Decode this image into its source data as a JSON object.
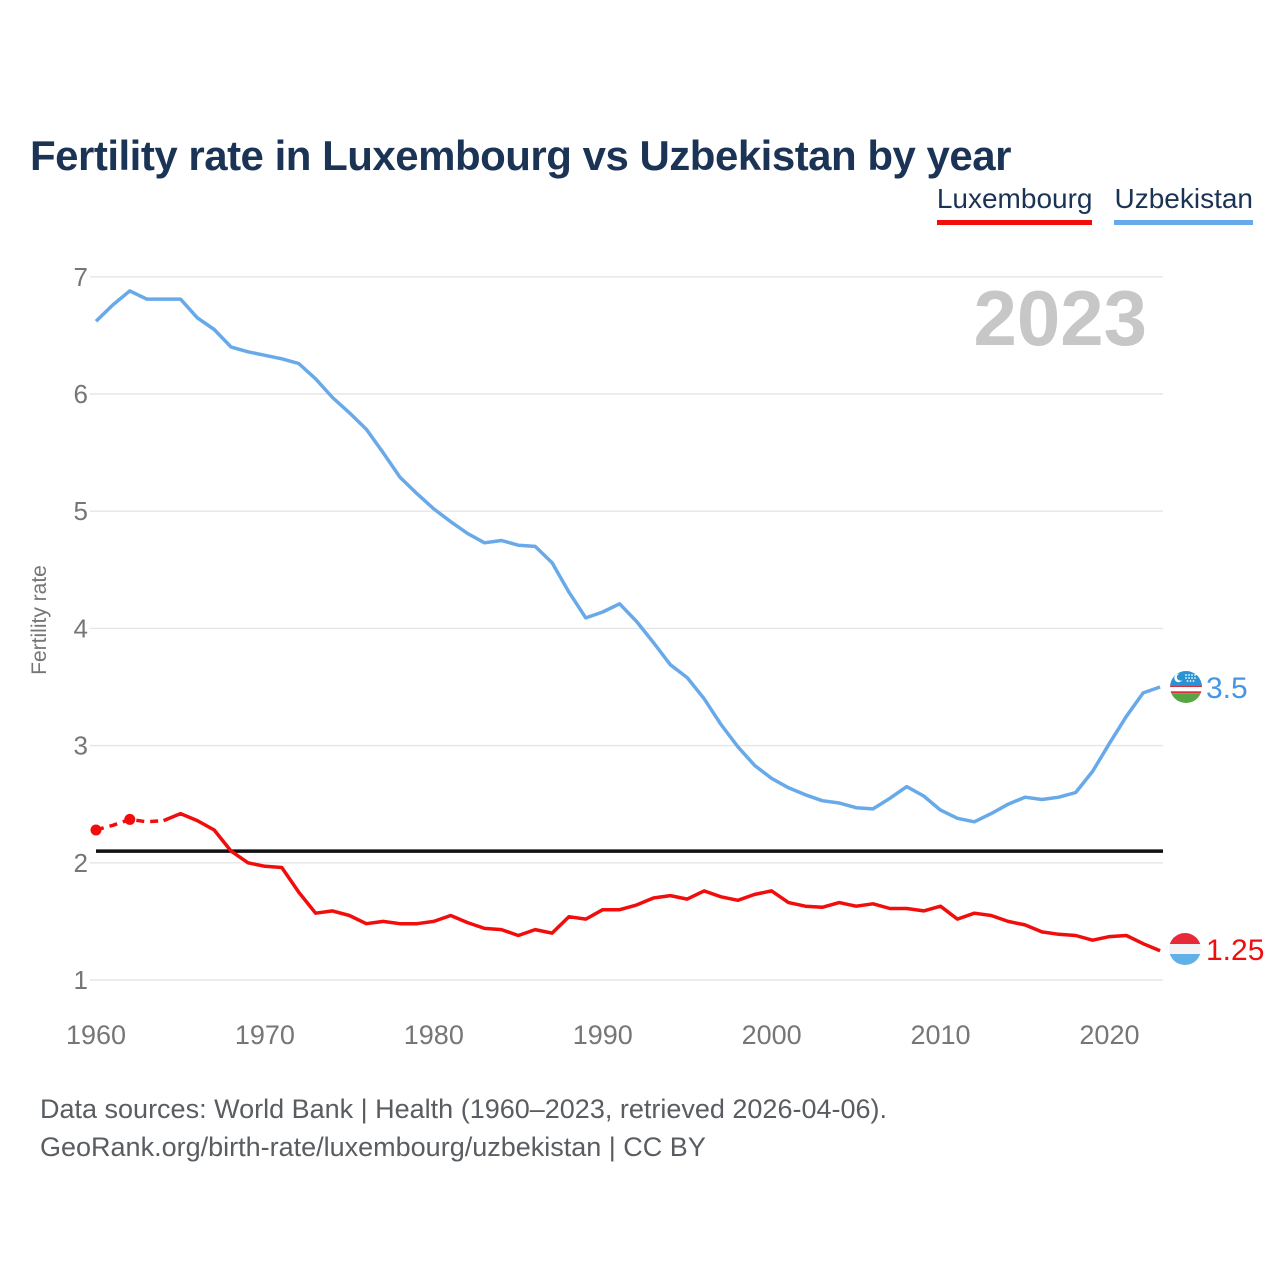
{
  "header": {
    "title": "Fertility rate in Luxembourg vs Uzbekistan by year"
  },
  "legend": [
    {
      "id": "luxembourg",
      "label": "Luxembourg",
      "color": "#f20d0d"
    },
    {
      "id": "uzbekistan",
      "label": "Uzbekistan",
      "color": "#68a9e9"
    }
  ],
  "watermark": "2023",
  "chart_data": {
    "type": "line",
    "title": "Fertility rate in Luxembourg vs Uzbekistan by year",
    "xlabel": "",
    "ylabel": "Fertility rate",
    "ylim": [
      1,
      7
    ],
    "y_ticks": [
      1,
      2,
      3,
      4,
      5,
      6,
      7
    ],
    "x_ticks": [
      1960,
      1970,
      1980,
      1990,
      2000,
      2010,
      2020
    ],
    "x_range": [
      1960,
      2023
    ],
    "grid": "horizontal-only",
    "legend_position": "top-right",
    "reference_line": {
      "value": 2.1
    },
    "colors": {
      "grid": "#e6e6e6",
      "tick": "#767676",
      "reference": "#111111",
      "watermark": "#c7c7c7",
      "uzbekistan_text": "#4596e3",
      "luxembourg_text": "#f20d0d"
    },
    "series": [
      {
        "id": "uzbekistan",
        "name": "Uzbekistan",
        "color": "#68a9e9",
        "end_label": "3.5",
        "dashed_until_index": 0,
        "marker_years": [],
        "values": [
          6.62,
          6.76,
          6.88,
          6.81,
          6.81,
          6.81,
          6.65,
          6.55,
          6.4,
          6.36,
          6.33,
          6.3,
          6.26,
          6.13,
          5.97,
          5.84,
          5.7,
          5.5,
          5.29,
          5.15,
          5.02,
          4.91,
          4.81,
          4.73,
          4.75,
          4.71,
          4.7,
          4.56,
          4.31,
          4.09,
          4.14,
          4.21,
          4.06,
          3.88,
          3.69,
          3.58,
          3.4,
          3.18,
          2.99,
          2.83,
          2.72,
          2.64,
          2.58,
          2.53,
          2.51,
          2.47,
          2.46,
          2.55,
          2.65,
          2.57,
          2.45,
          2.38,
          2.35,
          2.42,
          2.5,
          2.56,
          2.54,
          2.56,
          2.6,
          2.78,
          3.02,
          3.25,
          3.45,
          3.5
        ]
      },
      {
        "id": "luxembourg",
        "name": "Luxembourg",
        "color": "#f20d0d",
        "end_label": "1.25",
        "dashed_until_index": 4,
        "marker_years": [
          1960,
          1962
        ],
        "values": [
          2.28,
          2.32,
          2.37,
          2.35,
          2.36,
          2.42,
          2.36,
          2.28,
          2.1,
          2.0,
          1.97,
          1.96,
          1.75,
          1.57,
          1.59,
          1.55,
          1.48,
          1.5,
          1.48,
          1.48,
          1.5,
          1.55,
          1.49,
          1.44,
          1.43,
          1.38,
          1.43,
          1.4,
          1.54,
          1.52,
          1.6,
          1.6,
          1.64,
          1.7,
          1.72,
          1.69,
          1.76,
          1.71,
          1.68,
          1.73,
          1.76,
          1.66,
          1.63,
          1.62,
          1.66,
          1.63,
          1.65,
          1.61,
          1.61,
          1.59,
          1.63,
          1.52,
          1.57,
          1.55,
          1.5,
          1.47,
          1.41,
          1.39,
          1.38,
          1.34,
          1.37,
          1.38,
          1.31,
          1.25
        ]
      }
    ]
  },
  "footer": {
    "line1": "Data sources: World Bank | Health (1960–2023, retrieved 2026-04-06).",
    "line2": "GeoRank.org/birth-rate/luxembourg/uzbekistan | CC BY"
  }
}
